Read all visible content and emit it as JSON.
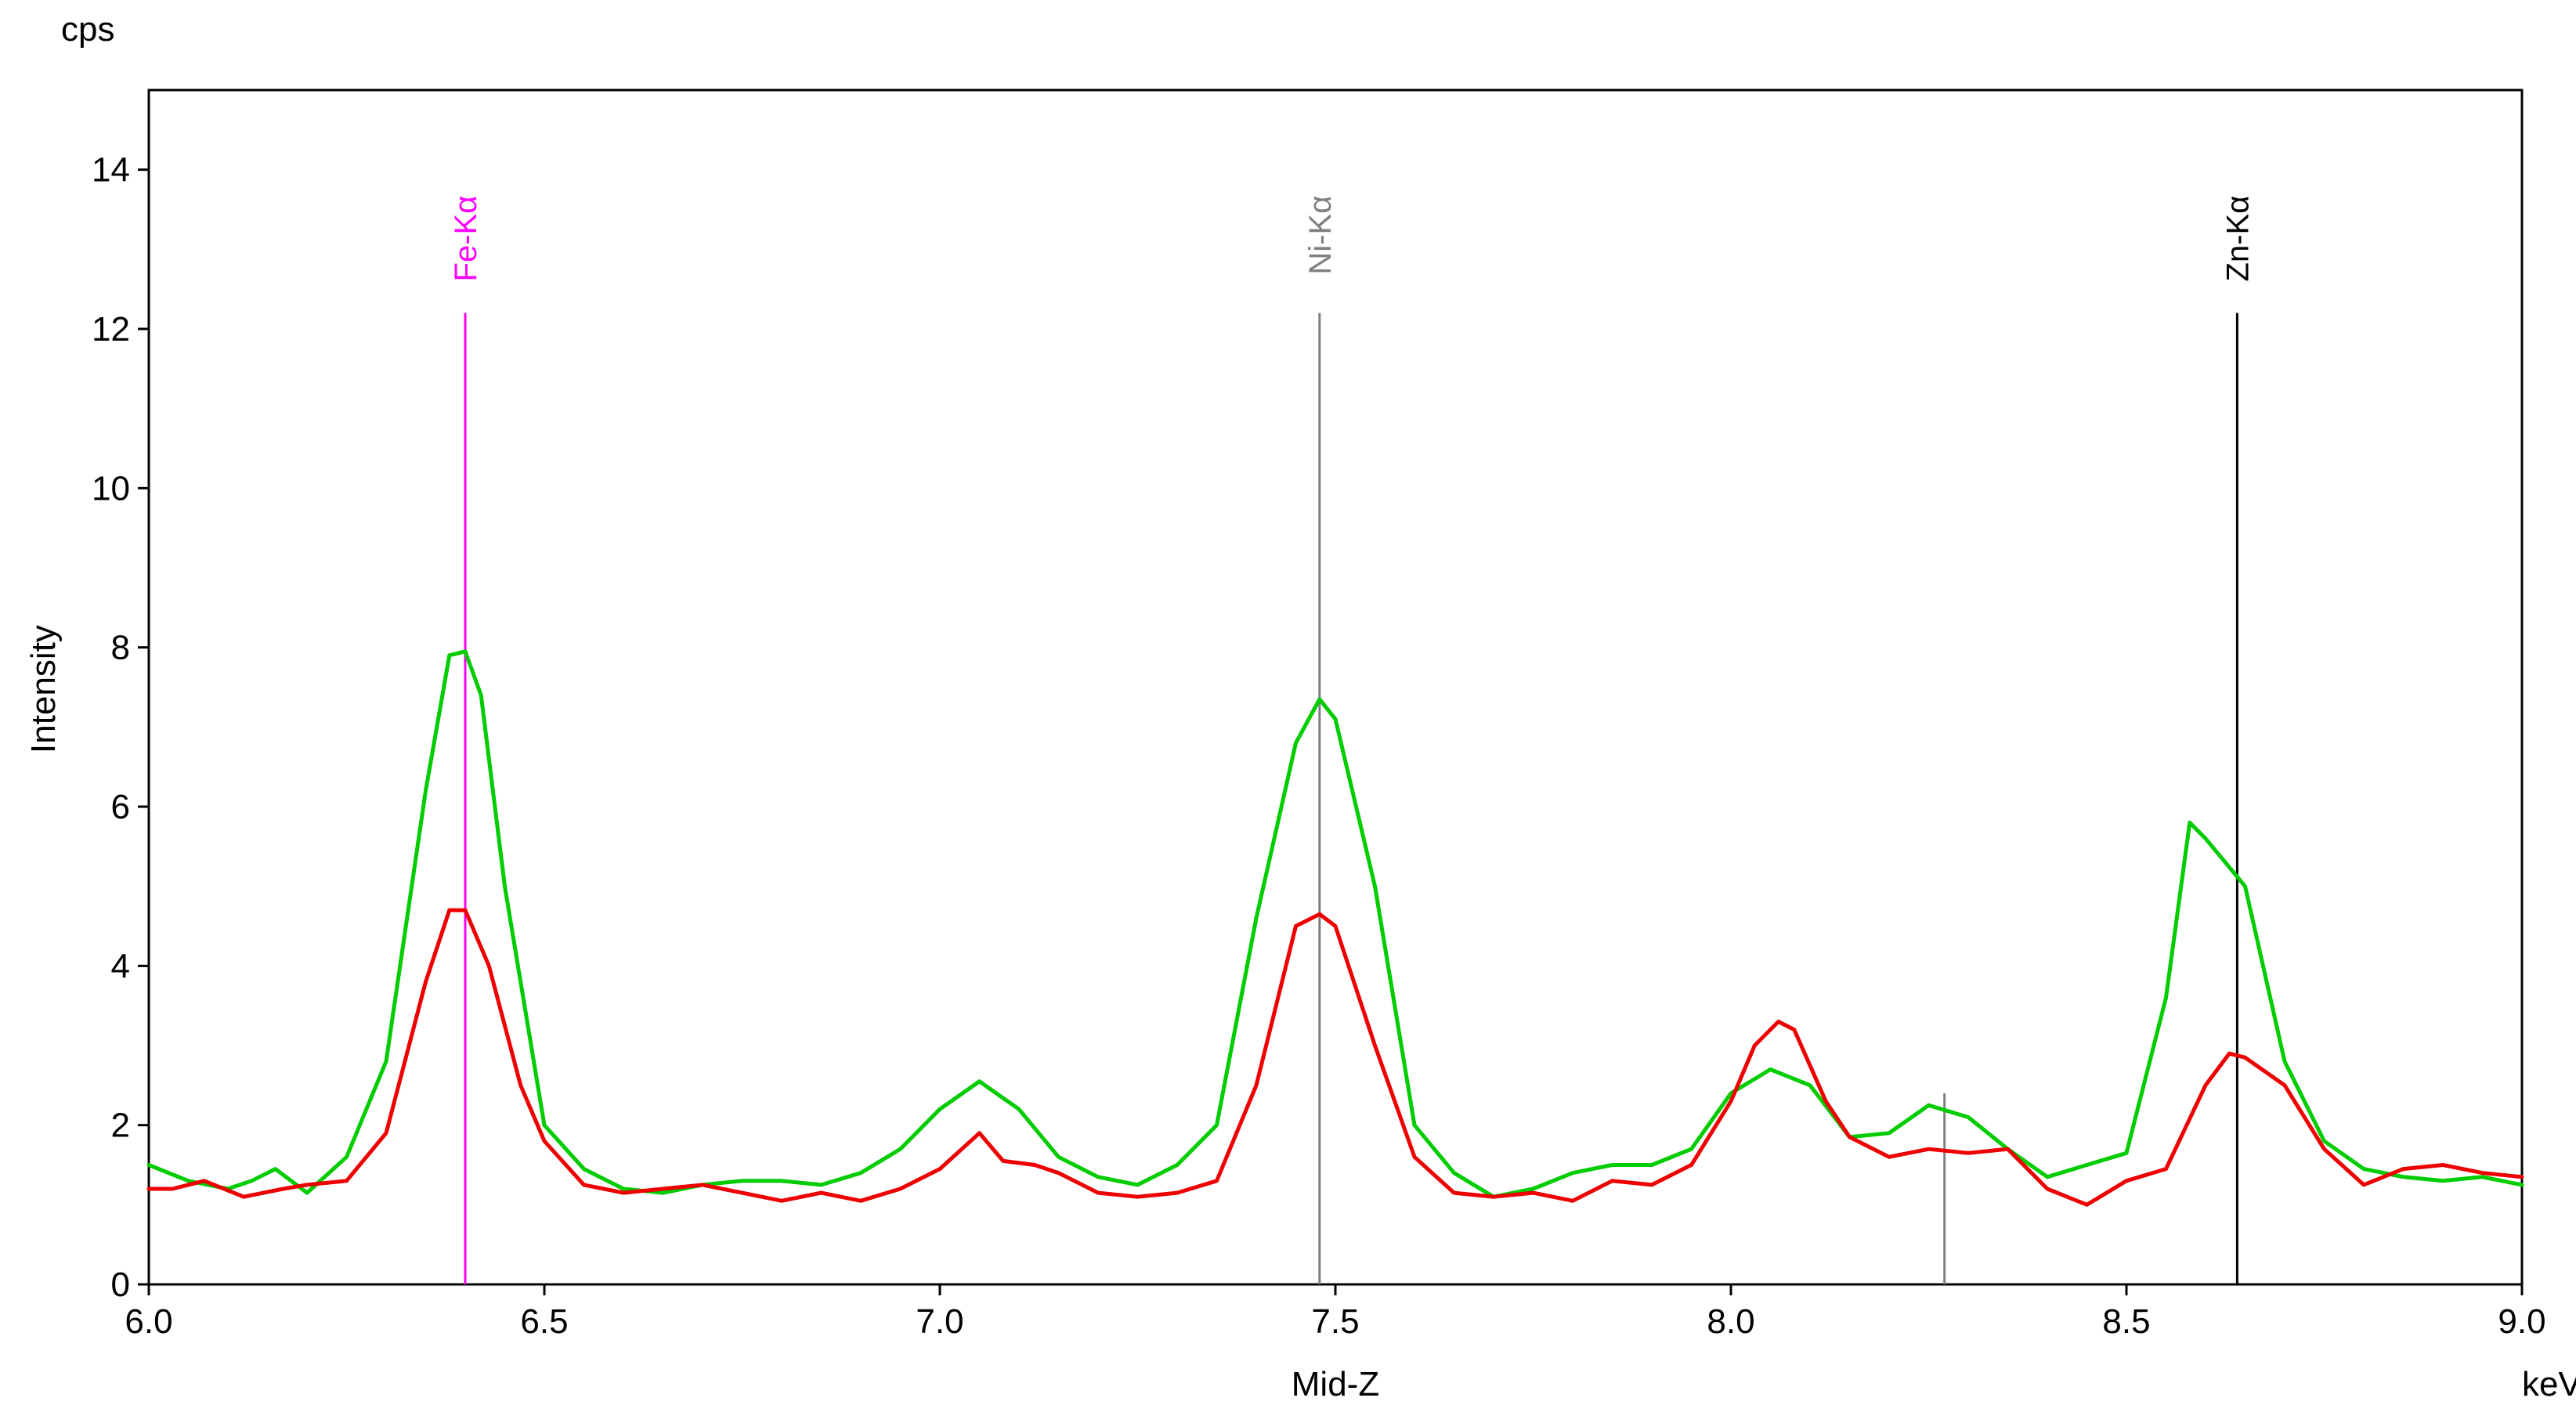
{
  "chart_data": {
    "type": "line",
    "title": "",
    "xlabel": "Mid-Z",
    "xunit": "keV",
    "ylabel": "Intensity",
    "yunit": "cps",
    "xlim": [
      6.0,
      9.0
    ],
    "ylim": [
      0,
      15
    ],
    "xticks": [
      "6.0",
      "6.5",
      "7.0",
      "7.5",
      "8.0",
      "8.5",
      "9.0"
    ],
    "yticks": [
      "0",
      "2",
      "4",
      "6",
      "8",
      "10",
      "12",
      "14"
    ],
    "grid": false,
    "legend": "none",
    "series": [
      {
        "color": "#00cc00",
        "x": [
          6.0,
          6.05,
          6.1,
          6.13,
          6.16,
          6.2,
          6.25,
          6.3,
          6.35,
          6.38,
          6.4,
          6.42,
          6.45,
          6.5,
          6.55,
          6.6,
          6.65,
          6.7,
          6.75,
          6.8,
          6.85,
          6.9,
          6.95,
          7.0,
          7.05,
          7.1,
          7.15,
          7.2,
          7.25,
          7.3,
          7.35,
          7.4,
          7.45,
          7.48,
          7.5,
          7.55,
          7.6,
          7.65,
          7.7,
          7.75,
          7.8,
          7.85,
          7.9,
          7.95,
          8.0,
          8.05,
          8.1,
          8.15,
          8.2,
          8.25,
          8.3,
          8.35,
          8.4,
          8.45,
          8.5,
          8.55,
          8.58,
          8.6,
          8.65,
          8.7,
          8.75,
          8.8,
          8.85,
          8.9,
          8.95,
          9.0
        ],
        "y": [
          1.5,
          1.3,
          1.2,
          1.3,
          1.45,
          1.15,
          1.6,
          2.8,
          6.2,
          7.9,
          7.95,
          7.4,
          5.0,
          2.0,
          1.45,
          1.2,
          1.15,
          1.25,
          1.3,
          1.3,
          1.25,
          1.4,
          1.7,
          2.2,
          2.55,
          2.2,
          1.6,
          1.35,
          1.25,
          1.5,
          2.0,
          4.6,
          6.8,
          7.35,
          7.1,
          5.0,
          2.0,
          1.4,
          1.1,
          1.2,
          1.4,
          1.5,
          1.5,
          1.7,
          2.4,
          2.7,
          2.5,
          1.85,
          1.9,
          2.25,
          2.1,
          1.7,
          1.35,
          1.5,
          1.65,
          3.6,
          5.8,
          5.6,
          5.0,
          2.8,
          1.8,
          1.45,
          1.35,
          1.3,
          1.35,
          1.25
        ]
      },
      {
        "color": "#ee0000",
        "x": [
          6.0,
          6.03,
          6.07,
          6.12,
          6.17,
          6.2,
          6.25,
          6.3,
          6.35,
          6.38,
          6.4,
          6.43,
          6.47,
          6.5,
          6.55,
          6.6,
          6.65,
          6.7,
          6.75,
          6.8,
          6.85,
          6.9,
          6.95,
          7.0,
          7.05,
          7.08,
          7.12,
          7.15,
          7.2,
          7.25,
          7.3,
          7.35,
          7.4,
          7.45,
          7.48,
          7.5,
          7.55,
          7.6,
          7.65,
          7.7,
          7.75,
          7.8,
          7.85,
          7.9,
          7.95,
          8.0,
          8.03,
          8.06,
          8.08,
          8.12,
          8.15,
          8.2,
          8.25,
          8.3,
          8.35,
          8.4,
          8.45,
          8.5,
          8.55,
          8.6,
          8.63,
          8.65,
          8.7,
          8.75,
          8.8,
          8.85,
          8.9,
          8.95,
          9.0
        ],
        "y": [
          1.2,
          1.2,
          1.3,
          1.1,
          1.2,
          1.25,
          1.3,
          1.9,
          3.8,
          4.7,
          4.7,
          4.0,
          2.5,
          1.8,
          1.25,
          1.15,
          1.2,
          1.25,
          1.15,
          1.05,
          1.15,
          1.05,
          1.2,
          1.45,
          1.9,
          1.55,
          1.5,
          1.4,
          1.15,
          1.1,
          1.15,
          1.3,
          2.5,
          4.5,
          4.65,
          4.5,
          3.0,
          1.6,
          1.15,
          1.1,
          1.15,
          1.05,
          1.3,
          1.25,
          1.5,
          2.3,
          3.0,
          3.3,
          3.2,
          2.3,
          1.85,
          1.6,
          1.7,
          1.65,
          1.7,
          1.2,
          1.0,
          1.3,
          1.45,
          2.5,
          2.9,
          2.85,
          2.5,
          1.7,
          1.25,
          1.45,
          1.5,
          1.4,
          1.35
        ]
      }
    ],
    "markers": [
      {
        "label": "Fe-Kα",
        "x": 6.4,
        "color": "#ff00ff",
        "top": 12.2
      },
      {
        "label": "Ni-Kα",
        "x": 7.48,
        "color": "#808080",
        "top": 12.2
      },
      {
        "label": "Zn-Kα",
        "x": 8.64,
        "color": "#000000",
        "top": 12.2
      },
      {
        "label": "",
        "x": 8.27,
        "color": "#808080",
        "top": 2.4
      }
    ]
  }
}
